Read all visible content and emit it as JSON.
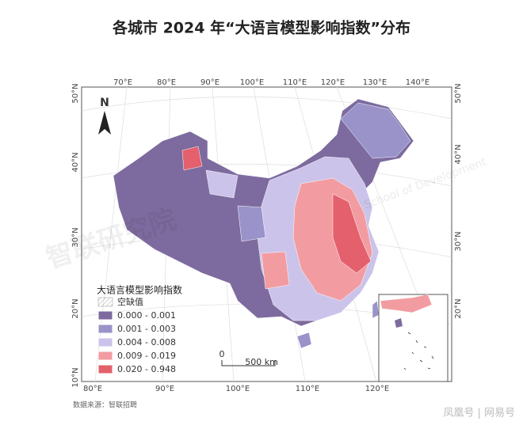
{
  "title": "各城市 2024 年“大语言模型影响指数”分布",
  "graticule": {
    "top": [
      "70°E",
      "80°E",
      "90°E",
      "100°E",
      "110°E",
      "120°E",
      "130°E",
      "140°E"
    ],
    "bottom": [
      "80°E",
      "90°E",
      "100°E",
      "110°E",
      "120°E"
    ],
    "left": [
      "50°N",
      "40°N",
      "30°N",
      "20°N",
      "10°N"
    ],
    "right": [
      "50°N",
      "40°N",
      "30°N",
      "20°N"
    ]
  },
  "north": "N",
  "legend": {
    "title": "大语言模型影响指数",
    "missing": "空缺值",
    "items": [
      {
        "label": "0.000 - 0.001",
        "color": "#7d6b9f"
      },
      {
        "label": "0.001 - 0.003",
        "color": "#9993c9"
      },
      {
        "label": "0.004 - 0.008",
        "color": "#cbc3ea"
      },
      {
        "label": "0.009 - 0.019",
        "color": "#f29ca1"
      },
      {
        "label": "0.020 - 0.948",
        "color": "#e3606c"
      }
    ]
  },
  "scale": {
    "start": "0",
    "end": "500 km"
  },
  "source": "数据来源：智联招聘",
  "watermarks": [
    "智联研究院",
    "School of Development"
  ],
  "footer": "凤凰号 | 网易号"
}
